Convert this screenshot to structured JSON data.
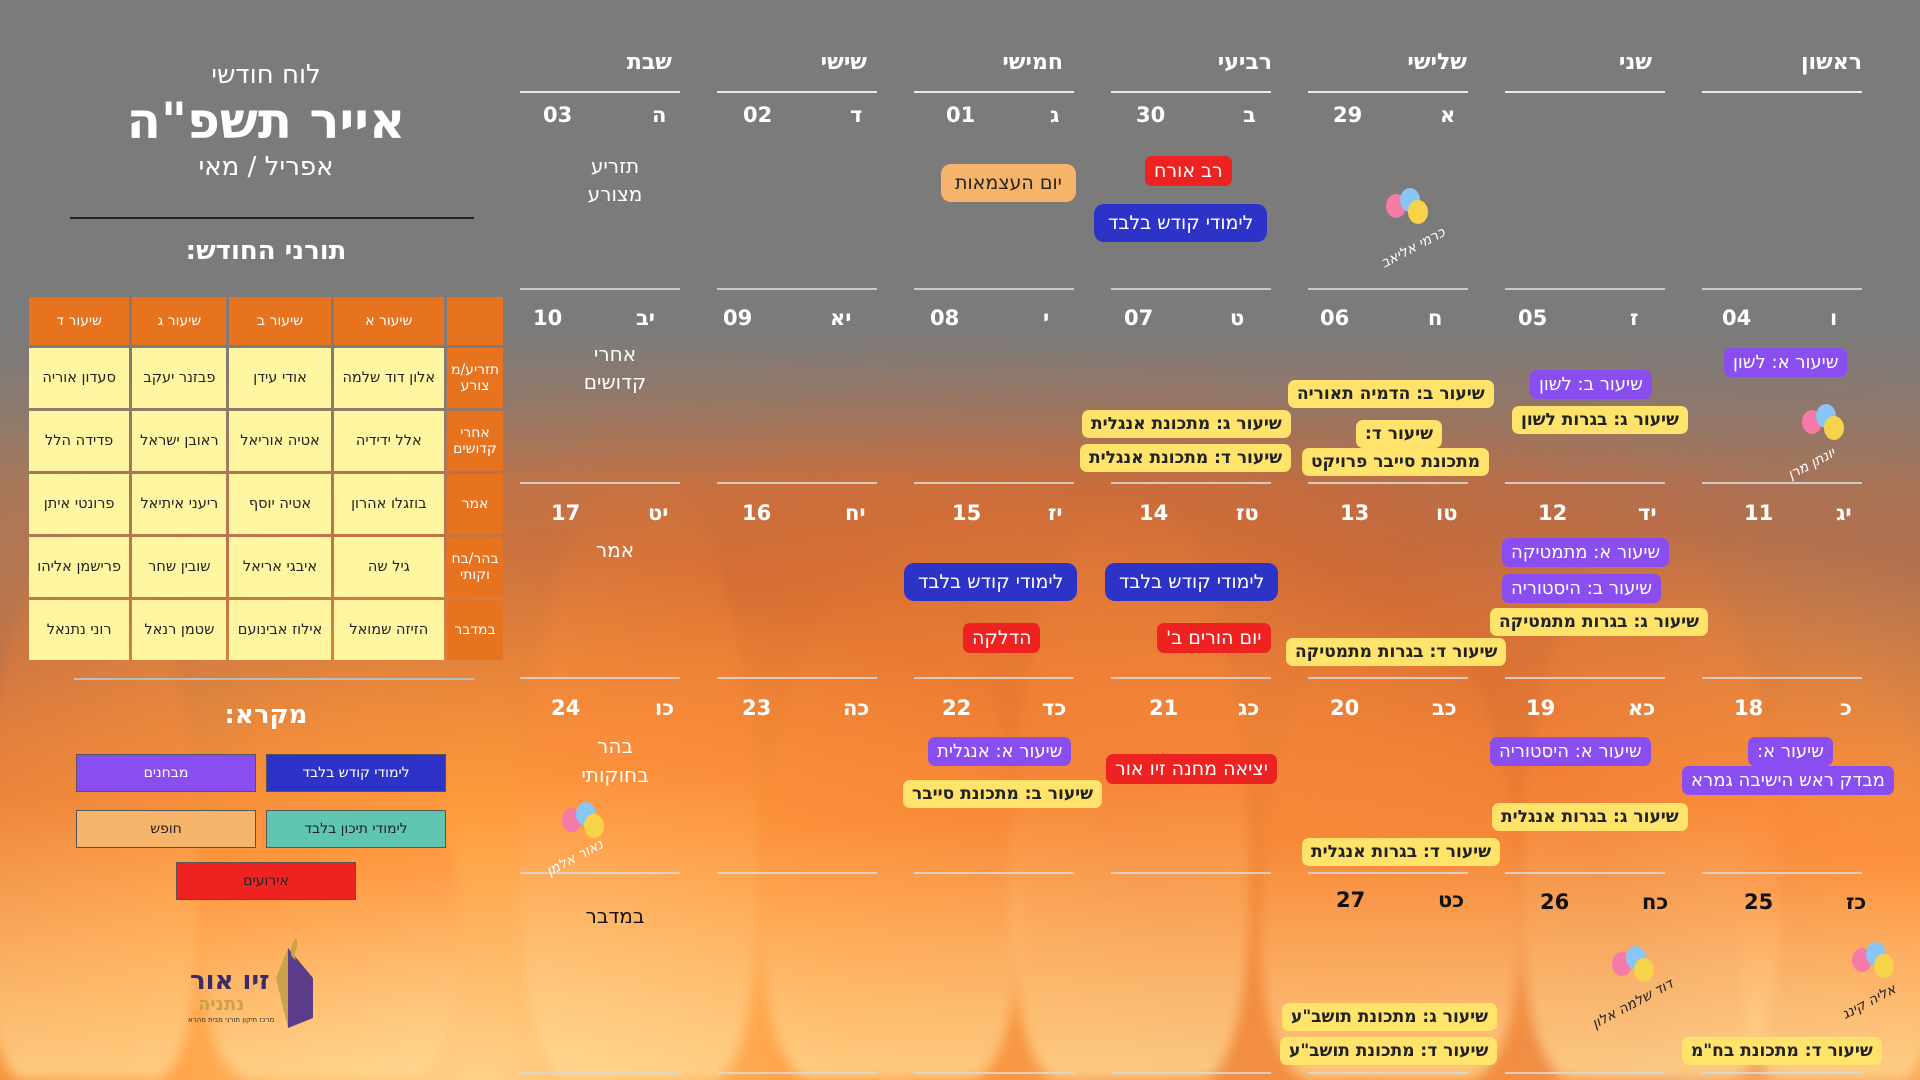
{
  "header": {
    "small": "לוח חודשי",
    "big": "אייר תשפ\"ה",
    "sub": "אפריל / מאי"
  },
  "duty": {
    "title": "תורני החודש:",
    "columns": [
      "שיעור א",
      "שיעור ב",
      "שיעור ג",
      "שיעור ד"
    ],
    "rows": [
      {
        "label": "תזריע/מ צורע",
        "cells": [
          "אלון דוד שלמה",
          "אודי עידן",
          "פבזנר יעקב",
          "סעדון אוריה"
        ]
      },
      {
        "label": "אחרי קדושים",
        "cells": [
          "אלל ידידיה",
          "אטיה אוריאל",
          "ראובן ישראל",
          "פדידה הלל"
        ]
      },
      {
        "label": "אמר",
        "cells": [
          "בוזגלו אהרון",
          "אטיה יוסף",
          "ריעני איתיאל",
          "פרונטי איתן"
        ]
      },
      {
        "label": "בהר/בח וקותי",
        "cells": [
          "גיל שה",
          "איבגי אריאל",
          "שובין שחר",
          "פרישמן אליהו"
        ]
      },
      {
        "label": "במדבר",
        "cells": [
          "הזיזה שמואל",
          "אילוז אבינועם",
          "שטמן רנאל",
          "רוני נתנאל"
        ]
      }
    ]
  },
  "legend": {
    "title": "מקרא:",
    "items": [
      {
        "label": "מבחנים",
        "color": "#8a4ef0"
      },
      {
        "label": "לימודי קודש בלבד",
        "color": "#2e33c8"
      },
      {
        "label": "חופש",
        "color": "#f6b46b"
      },
      {
        "label": "לימודי תיכון בלבד",
        "color": "#5ec6b0"
      },
      {
        "label": "אירועים",
        "color": "#ef2222"
      }
    ]
  },
  "logo": {
    "line1": "זיו אור",
    "line2": "נתניה",
    "line3": "מרכז תיקון תורני מבית סהרא"
  },
  "days": [
    "ראשון",
    "שני",
    "שלישי",
    "רביעי",
    "חמישי",
    "שישי",
    "שבת"
  ],
  "cells": {
    "r0": {
      "d2": {
        "num": "29",
        "heb": "א"
      },
      "d3": {
        "num": "30",
        "heb": "ב"
      },
      "d4": {
        "num": "01",
        "heb": "ג"
      },
      "d5": {
        "num": "02",
        "heb": "ד"
      },
      "d6": {
        "num": "03",
        "heb": "ה",
        "note1": "תזריע",
        "note2": "מצורע"
      }
    },
    "r1": {
      "d0": {
        "num": "04",
        "heb": "ו"
      },
      "d1": {
        "num": "05",
        "heb": "ז"
      },
      "d2": {
        "num": "06",
        "heb": "ח"
      },
      "d3": {
        "num": "07",
        "heb": "ט"
      },
      "d4": {
        "num": "08",
        "heb": "י"
      },
      "d5": {
        "num": "09",
        "heb": "יא"
      },
      "d6": {
        "num": "10",
        "heb": "יב",
        "note1": "אחרי",
        "note2": "קדושים"
      }
    },
    "r2": {
      "d0": {
        "num": "11",
        "heb": "יג"
      },
      "d1": {
        "num": "12",
        "heb": "יד"
      },
      "d2": {
        "num": "13",
        "heb": "טו"
      },
      "d3": {
        "num": "14",
        "heb": "טז"
      },
      "d4": {
        "num": "15",
        "heb": "יז"
      },
      "d5": {
        "num": "16",
        "heb": "יח"
      },
      "d6": {
        "num": "17",
        "heb": "יט",
        "note1": "אמר"
      }
    },
    "r3": {
      "d0": {
        "num": "18",
        "heb": "כ"
      },
      "d1": {
        "num": "19",
        "heb": "כא"
      },
      "d2": {
        "num": "20",
        "heb": "כב"
      },
      "d3": {
        "num": "21",
        "heb": "כג"
      },
      "d4": {
        "num": "22",
        "heb": "כד"
      },
      "d5": {
        "num": "23",
        "heb": "כה"
      },
      "d6": {
        "num": "24",
        "heb": "כו",
        "note1": "בהר",
        "note2": "בחוקותי"
      }
    },
    "r4": {
      "d0": {
        "num": "25",
        "heb": "כז"
      },
      "d1": {
        "num": "26",
        "heb": "כח"
      },
      "d2": {
        "num": "27",
        "heb": "כט"
      },
      "d6": {
        "note1": "במדבר"
      }
    }
  },
  "events": {
    "independence": "יום העצמאות",
    "guest": "רב אורח",
    "kodesh30": "לימודי קודש בלבד",
    "e04a": "שיעור א: לשון",
    "e05a": "שיעור ב: לשון",
    "e05b": "שיעור ג: בגרות לשון",
    "e06a": "שיעור ב: הדמיה תאוריה",
    "e06b": "שיעור ד:",
    "e06c": "מתכונת סייבר פרויקט",
    "e07a": "שיעור ג: מתכונת אנגלית",
    "e07b": "שיעור ד: מתכונת אנגלית",
    "e12a": "שיעור א: מתמטיקה",
    "e12b": "שיעור ב: היסטוריה",
    "e12c": "שיעור ג: בגרות מתמטיקה",
    "e13a": "שיעור ד: בגרות מתמטיקה",
    "kodesh14": "לימודי קודש בלבד",
    "parents": "יום הורים ב'",
    "kodesh15": "לימודי קודש בלבד",
    "lighting": "הדלקה",
    "e18a": "שיעור א:",
    "e18b": "מבדק ראש הישיבה גמרא",
    "e19a": "שיעור א: היסטוריה",
    "e19b": "שיעור ג: בגרות אנגלית",
    "e20a": "שיעור ד: בגרות אנגלית",
    "camp": "יציאה מחנה זיו אור",
    "e22a": "שיעור א: אנגלית",
    "e22b": "שיעור ב: מתכונת סייבר",
    "e27a": "שיעור ג: מתכונת תושב\"ע",
    "e27b": "שיעור ד: מתכונת תושב\"ע",
    "e25a": "שיעור ד: מתכונת בח\"מ"
  },
  "birthdays": {
    "b29": "כרמי אליאב",
    "b04": "יונתן מרן",
    "b24": "נאור אלמן",
    "b26": "דוד שלמה אלון",
    "b25": "אליה קינג"
  },
  "colors": {
    "orange": "#e8731f",
    "cell": "#fff6a2"
  }
}
